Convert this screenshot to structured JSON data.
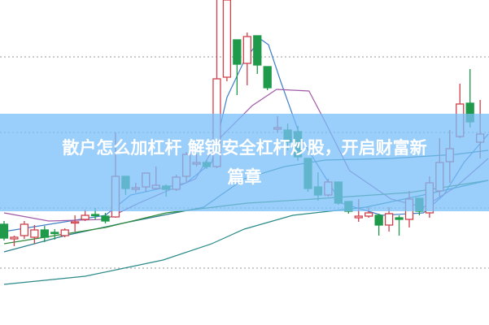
{
  "banner": {
    "line1": "散户怎么加杠杆 解锁安全杠杆炒股，开启财富新",
    "line2": "篇章"
  },
  "chart_data": {
    "type": "candlestick",
    "title": "",
    "xlabel": "",
    "ylabel": "",
    "ylim": [
      0,
      40
    ],
    "grid": "horizontal dotted",
    "gridlines": [
      7.0,
      14.4,
      23.7,
      33.0
    ],
    "colors": {
      "up": "#d0404a",
      "down": "#1e9a4a",
      "grid": "#999999"
    },
    "candles_ohlc": [
      [
        12.4,
        12.8,
        10.4,
        10.7
      ],
      [
        10.6,
        11.0,
        9.7,
        10.8
      ],
      [
        11.0,
        12.8,
        10.6,
        12.4
      ],
      [
        10.8,
        12.3,
        10.0,
        11.7
      ],
      [
        11.7,
        12.2,
        10.2,
        10.8
      ],
      [
        11.4,
        11.8,
        10.5,
        11.3
      ],
      [
        11.0,
        11.9,
        10.8,
        11.7
      ],
      [
        12.6,
        13.5,
        11.5,
        12.7
      ],
      [
        13.0,
        14.2,
        12.8,
        13.5
      ],
      [
        13.6,
        14.4,
        13.0,
        13.5
      ],
      [
        13.4,
        13.8,
        12.5,
        12.8
      ],
      [
        13.3,
        23.7,
        13.2,
        18.3
      ],
      [
        18.3,
        18.3,
        16.0,
        16.8
      ],
      [
        16.7,
        17.5,
        16.3,
        16.9
      ],
      [
        17.0,
        18.7,
        16.4,
        18.7
      ],
      [
        16.8,
        19.5,
        16.7,
        17.2
      ],
      [
        17.1,
        17.3,
        15.8,
        16.7
      ],
      [
        16.7,
        18.5,
        16.5,
        18.2
      ],
      [
        18.3,
        21.3,
        17.6,
        21.0
      ],
      [
        19.8,
        21.0,
        19.5,
        20.0
      ],
      [
        20.0,
        20.3,
        19.2,
        19.5
      ],
      [
        19.5,
        40.0,
        19.3,
        30.3
      ],
      [
        30.5,
        40.0,
        30.0,
        40.0
      ],
      [
        35.1,
        35.1,
        28.3,
        32.1
      ],
      [
        32.2,
        36.0,
        29.5,
        35.5
      ],
      [
        35.6,
        35.6,
        30.9,
        32.0
      ],
      [
        31.8,
        31.8,
        28.9,
        29.2
      ],
      [
        24.1,
        25.7,
        23.7,
        24.3
      ],
      [
        24.0,
        24.8,
        21.5,
        22.5
      ],
      [
        23.8,
        24.5,
        20.2,
        20.7
      ],
      [
        20.5,
        20.5,
        16.4,
        16.8
      ],
      [
        17.0,
        18.8,
        15.3,
        16.0
      ],
      [
        16.0,
        18.0,
        15.8,
        17.6
      ],
      [
        17.6,
        17.6,
        14.8,
        15.0
      ],
      [
        15.2,
        15.2,
        13.7,
        14.0
      ],
      [
        13.2,
        15.5,
        12.7,
        13.4
      ],
      [
        13.4,
        14.5,
        13.2,
        13.8
      ],
      [
        13.5,
        13.7,
        11.0,
        12.3
      ],
      [
        12.3,
        14.5,
        11.5,
        13.7
      ],
      [
        13.2,
        13.5,
        11.0,
        13.0
      ],
      [
        13.0,
        16.5,
        12.0,
        15.5
      ],
      [
        15.6,
        15.6,
        13.5,
        14.0
      ],
      [
        13.8,
        18.3,
        13.2,
        17.5
      ],
      [
        16.5,
        23.0,
        15.8,
        20.0
      ],
      [
        20.1,
        24.0,
        17.5,
        21.7
      ],
      [
        23.2,
        29.7,
        23.0,
        27.2
      ],
      [
        27.3,
        31.5,
        24.3,
        25.0
      ],
      [
        22.5,
        27.7,
        20.5,
        23.5
      ]
    ],
    "moving_averages": [
      {
        "color": "#3f7fc8",
        "points": [
          [
            0,
            11.5
          ],
          [
            10,
            13.5
          ],
          [
            12.5,
            16
          ],
          [
            18,
            17.5
          ],
          [
            20.5,
            20
          ],
          [
            22,
            28
          ],
          [
            23.7,
            32.5
          ],
          [
            25.3,
            35.2
          ],
          [
            26.1,
            34.5
          ],
          [
            27.3,
            30
          ],
          [
            29.3,
            23
          ],
          [
            33.3,
            15
          ],
          [
            37.3,
            13.5
          ],
          [
            41.4,
            13.8
          ],
          [
            43.4,
            16
          ],
          [
            45.4,
            20
          ],
          [
            47.8,
            23.5
          ]
        ]
      },
      {
        "color": "#a05aa8",
        "points": [
          [
            0,
            13.8
          ],
          [
            4.4,
            12.8
          ],
          [
            10,
            13
          ],
          [
            13.3,
            15
          ],
          [
            18.9,
            18
          ],
          [
            21.3,
            23
          ],
          [
            24.5,
            27
          ],
          [
            26.9,
            29
          ],
          [
            30.1,
            28.8
          ],
          [
            31.7,
            25
          ],
          [
            34.1,
            19
          ],
          [
            38.2,
            15.5
          ],
          [
            41.4,
            14.5
          ],
          [
            44.6,
            17
          ],
          [
            47.8,
            20.5
          ]
        ]
      },
      {
        "color": "#2c7f8c",
        "points": [
          [
            0,
            9
          ],
          [
            6,
            11
          ],
          [
            11.6,
            12.5
          ],
          [
            19.7,
            14.5
          ],
          [
            23.7,
            18
          ],
          [
            27.7,
            19.5
          ],
          [
            31.7,
            20.3
          ],
          [
            38.2,
            20.5
          ],
          [
            44.6,
            21
          ],
          [
            47.8,
            21.5
          ]
        ]
      },
      {
        "color": "#2f8a3c",
        "points": [
          [
            0,
            10
          ],
          [
            10,
            12
          ],
          [
            16,
            13.8
          ],
          [
            24,
            15
          ],
          [
            30.5,
            15.5
          ],
          [
            40,
            16.3
          ],
          [
            47.8,
            17.8
          ]
        ]
      },
      {
        "color": "#2a8a8a",
        "points": [
          [
            0,
            5
          ],
          [
            8,
            6
          ],
          [
            15.7,
            8
          ],
          [
            20.5,
            10
          ],
          [
            23.7,
            11.8
          ],
          [
            28.5,
            13.5
          ],
          [
            35.7,
            14.5
          ],
          [
            41.4,
            16
          ],
          [
            47.8,
            17.8
          ]
        ]
      }
    ]
  }
}
